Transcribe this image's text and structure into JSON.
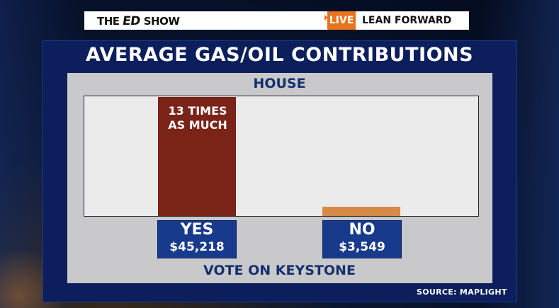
{
  "banner": {
    "show_prefix": "THE",
    "show_ed": "ED",
    "show_suffix": "SHOW",
    "live": "LIVE",
    "tagline": "LEAN FORWARD"
  },
  "colors": {
    "yes_bar": "#7a2317",
    "no_bar": "#d68a45",
    "category_box": "#173a8c",
    "live_tag": "#e8741e"
  },
  "chart_data": {
    "type": "bar",
    "title": "AVERAGE GAS/OIL CONTRIBUTIONS",
    "subtitle": "HOUSE",
    "xlabel": "VOTE ON KEYSTONE",
    "ylabel": "",
    "categories": [
      "YES",
      "NO"
    ],
    "values": [
      45218,
      3549
    ],
    "value_labels": [
      "$45,218",
      "$3,549"
    ],
    "annotation": "13 TIMES AS MUCH",
    "annotation_line1": "13 TIMES",
    "annotation_line2": "AS MUCH",
    "ylim": [
      0,
      45218
    ],
    "grid": false
  },
  "source": "SOURCE: MAPLIGHT"
}
